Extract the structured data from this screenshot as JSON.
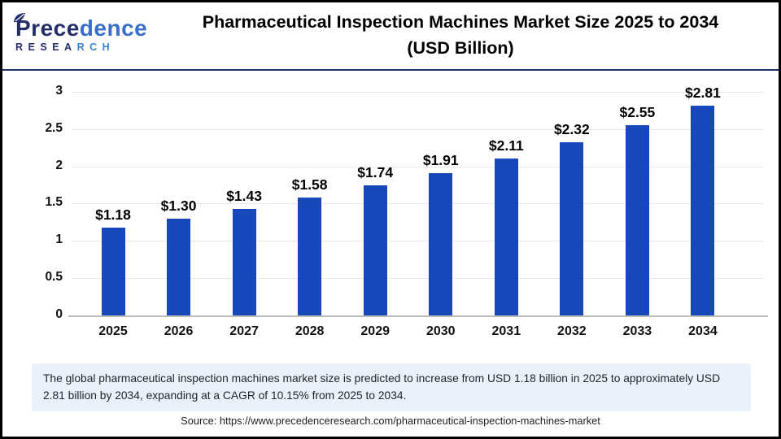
{
  "logo": {
    "word_part1": "Prece",
    "word_part2": "dence",
    "sub_part1": "RESEA",
    "sub_part2": "RCH"
  },
  "header": {
    "title_line1": "Pharmaceutical Inspection Machines Market Size 2025 to 2034",
    "title_line2": "(USD Billion)"
  },
  "chart_data": {
    "type": "bar",
    "title": "Pharmaceutical Inspection Machines Market Size 2025 to 2034 (USD Billion)",
    "categories": [
      "2025",
      "2026",
      "2027",
      "2028",
      "2029",
      "2030",
      "2031",
      "2032",
      "2033",
      "2034"
    ],
    "values": [
      1.18,
      1.3,
      1.43,
      1.58,
      1.74,
      1.91,
      2.11,
      2.32,
      2.55,
      2.81
    ],
    "value_labels": [
      "$1.18",
      "$1.30",
      "$1.43",
      "$1.58",
      "$1.74",
      "$1.91",
      "$2.11",
      "$2.32",
      "$2.55",
      "$2.81"
    ],
    "xlabel": "",
    "ylabel": "",
    "ylim": [
      0,
      3
    ],
    "yticks": [
      "0",
      "0.5",
      "1",
      "1.5",
      "2",
      "2.5",
      "3"
    ],
    "grid": true,
    "legend": "none",
    "bar_color": "#1747b8",
    "gridline_color": "#e7e7e7",
    "axis_line_color": "#bdbdbd"
  },
  "summary": {
    "text": "The global pharmaceutical inspection machines market size is predicted to increase from USD 1.18 billion in 2025 to approximately USD 2.81 billion by 2034, expanding at a CAGR of 10.15% from 2025 to 2034."
  },
  "source": {
    "text": "Source: https://www.precedenceresearch.com/pharmaceutical-inspection-machines-market"
  }
}
